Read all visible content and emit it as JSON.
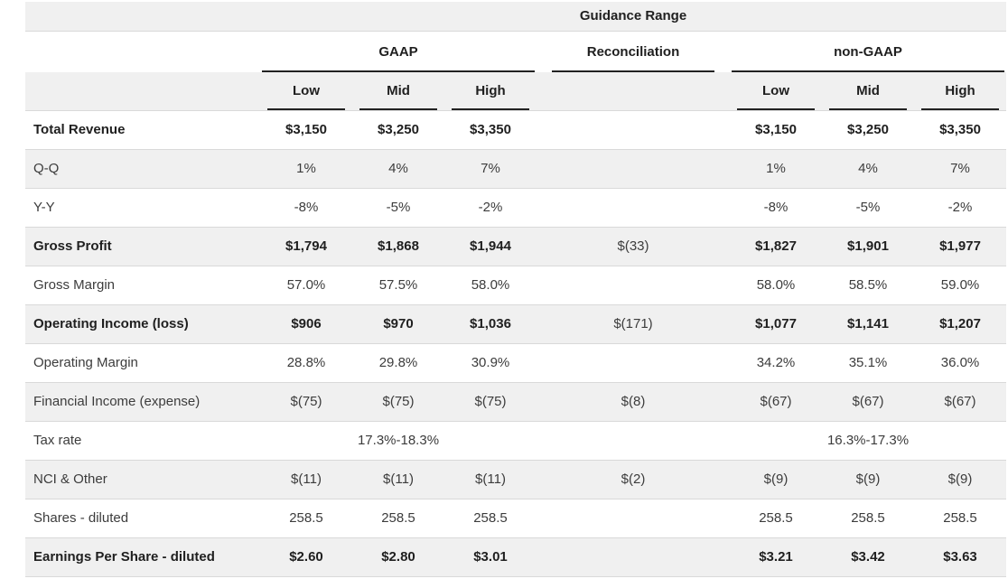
{
  "table": {
    "title": "Guidance Range",
    "groups": [
      "GAAP",
      "Reconciliation",
      "non-GAAP"
    ],
    "sub_headers": [
      "Low",
      "Mid",
      "High"
    ],
    "rows": [
      {
        "label": "Total Revenue",
        "emphasis": true,
        "gaap": [
          "$3,150",
          "$3,250",
          "$3,350"
        ],
        "recon": "",
        "non_gaap": [
          "$3,150",
          "$3,250",
          "$3,350"
        ]
      },
      {
        "label": "Q-Q",
        "emphasis": false,
        "gaap": [
          "1%",
          "4%",
          "7%"
        ],
        "recon": "",
        "non_gaap": [
          "1%",
          "4%",
          "7%"
        ]
      },
      {
        "label": "Y-Y",
        "emphasis": false,
        "gaap": [
          "-8%",
          "-5%",
          "-2%"
        ],
        "recon": "",
        "non_gaap": [
          "-8%",
          "-5%",
          "-2%"
        ]
      },
      {
        "label": "Gross Profit",
        "emphasis": true,
        "gaap": [
          "$1,794",
          "$1,868",
          "$1,944"
        ],
        "recon": "$(33)",
        "non_gaap": [
          "$1,827",
          "$1,901",
          "$1,977"
        ]
      },
      {
        "label": "Gross Margin",
        "emphasis": false,
        "gaap": [
          "57.0%",
          "57.5%",
          "58.0%"
        ],
        "recon": "",
        "non_gaap": [
          "58.0%",
          "58.5%",
          "59.0%"
        ]
      },
      {
        "label": "Operating Income (loss)",
        "emphasis": true,
        "gaap": [
          "$906",
          "$970",
          "$1,036"
        ],
        "recon": "$(171)",
        "non_gaap": [
          "$1,077",
          "$1,141",
          "$1,207"
        ]
      },
      {
        "label": "Operating Margin",
        "emphasis": false,
        "gaap": [
          "28.8%",
          "29.8%",
          "30.9%"
        ],
        "recon": "",
        "non_gaap": [
          "34.2%",
          "35.1%",
          "36.0%"
        ]
      },
      {
        "label": "Financial Income (expense)",
        "emphasis": false,
        "gaap": [
          "$(75)",
          "$(75)",
          "$(75)"
        ],
        "recon": "$(8)",
        "non_gaap": [
          "$(67)",
          "$(67)",
          "$(67)"
        ]
      },
      {
        "label": "Tax rate",
        "emphasis": false,
        "gaap_range": "17.3%-18.3%",
        "recon": "",
        "non_gaap_range": "16.3%-17.3%"
      },
      {
        "label": "NCI & Other",
        "emphasis": false,
        "gaap": [
          "$(11)",
          "$(11)",
          "$(11)"
        ],
        "recon": "$(2)",
        "non_gaap": [
          "$(9)",
          "$(9)",
          "$(9)"
        ]
      },
      {
        "label": "Shares - diluted",
        "emphasis": false,
        "gaap": [
          "258.5",
          "258.5",
          "258.5"
        ],
        "recon": "",
        "non_gaap": [
          "258.5",
          "258.5",
          "258.5"
        ]
      },
      {
        "label": "Earnings Per Share - diluted",
        "emphasis": true,
        "gaap": [
          "$2.60",
          "$2.80",
          "$3.01"
        ],
        "recon": "",
        "non_gaap": [
          "$3.21",
          "$3.42",
          "$3.63"
        ]
      }
    ],
    "colors": {
      "row_stripe": "#f0f0f0",
      "row_border": "#d9d9d9",
      "header_rule": "#222222",
      "text_emphasis": "#1f1f1f",
      "text_regular": "#3c3c3c"
    }
  }
}
